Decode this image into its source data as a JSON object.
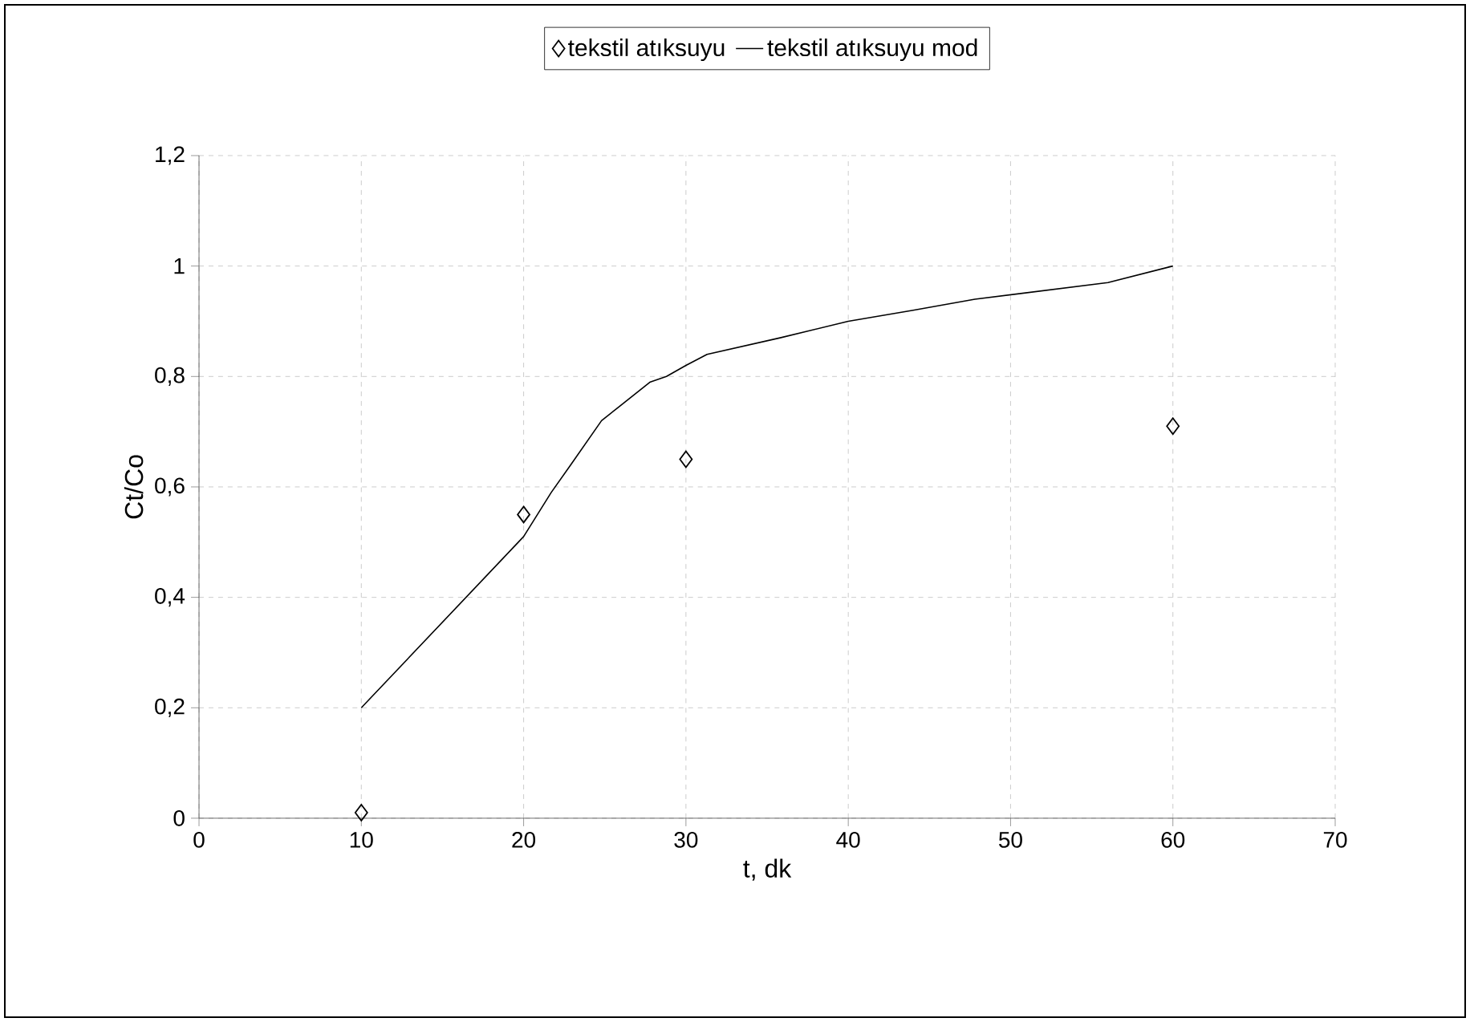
{
  "chart_data": {
    "type": "scatter",
    "xlabel": "t, dk",
    "ylabel": "Ct/Co",
    "xlim": [
      0,
      70
    ],
    "xticks": [
      0,
      10,
      20,
      30,
      40,
      50,
      60,
      70
    ],
    "ylim": [
      0,
      1.2
    ],
    "yticks": [
      0,
      {
        "value": 0.2,
        "label": "0,2"
      },
      {
        "value": 0.4,
        "label": "0,4"
      },
      {
        "value": 0.6,
        "label": "0,6"
      },
      {
        "value": 0.8,
        "label": "0,8"
      },
      1,
      {
        "value": 1.2,
        "label": "1,2"
      }
    ],
    "grid": true,
    "legend": "top",
    "series": [
      {
        "name": "tekstil atıksuyu",
        "marker": "diamond",
        "color": "#000000",
        "x": [
          10,
          20,
          30,
          60
        ],
        "values": [
          0.01,
          0.55,
          0.65,
          0.71
        ]
      },
      {
        "name": "tekstil atıksuyu mod",
        "type": "line",
        "color": "#000000",
        "marker": "none",
        "line_style": "solid",
        "x": [
          10,
          20,
          21.7,
          22.9,
          24.8,
          27.8,
          28.8,
          30,
          31.3,
          35.8,
          40,
          44,
          47.8,
          56,
          60
        ],
        "values": [
          0.2,
          0.51,
          0.59,
          0.64,
          0.72,
          0.79,
          0.8,
          0.82,
          0.84,
          0.87,
          0.9,
          0.92,
          0.94,
          0.97,
          1.0
        ]
      }
    ]
  }
}
